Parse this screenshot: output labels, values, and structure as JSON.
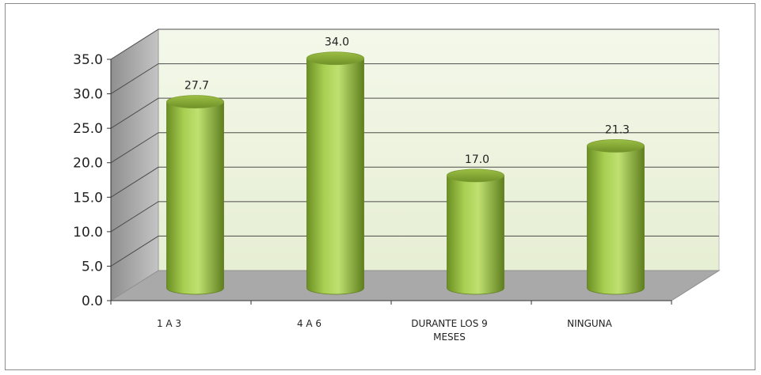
{
  "chart_data": {
    "type": "bar",
    "categories": [
      "1 A 3",
      "4 A 6",
      "DURANTE LOS 9 MESES",
      "NINGUNA"
    ],
    "category_lines": [
      [
        "1 A 3"
      ],
      [
        "4 A 6"
      ],
      [
        "DURANTE LOS 9",
        "MESES"
      ],
      [
        "NINGUNA"
      ]
    ],
    "values": [
      27.7,
      34.0,
      17.0,
      21.3
    ],
    "value_labels": [
      "27.7",
      "34.0",
      "17.0",
      "21.3"
    ],
    "ylim": [
      0,
      35
    ],
    "yticks": [
      "0.0",
      "5.0",
      "10.0",
      "15.0",
      "20.0",
      "25.0",
      "30.0",
      "35.0"
    ],
    "title": "",
    "xlabel": "",
    "ylabel": "",
    "grid": true,
    "style": "3d-cylinder",
    "colors": {
      "bar": "#9ec44a",
      "bar_dark": "#5f7f1f",
      "bar_light": "#d4ec95",
      "wall": "#f1f6e4",
      "side_wall": "#a8a8a8",
      "floor": "#a9a9a9",
      "grid": "#4d4d4d"
    }
  }
}
